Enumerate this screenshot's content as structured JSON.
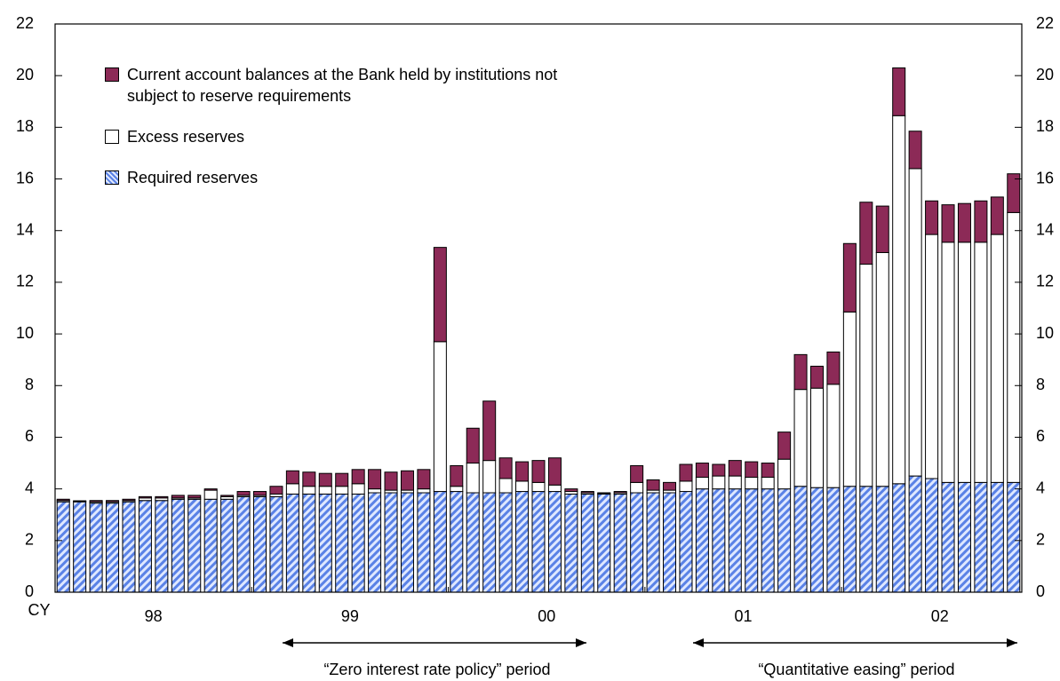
{
  "chart_data": {
    "type": "stacked_bar",
    "categories": [
      null,
      null,
      null,
      null,
      null,
      null,
      null,
      null,
      null,
      null,
      null,
      null,
      null,
      null,
      null,
      null,
      null,
      null,
      null,
      null,
      null,
      null,
      null,
      null,
      null,
      null,
      null,
      null,
      null,
      null,
      null,
      null,
      null,
      null,
      null,
      null,
      null,
      null,
      null,
      null,
      null,
      null,
      null,
      null,
      null,
      null,
      null,
      null,
      null,
      null,
      null,
      null,
      null,
      null,
      null,
      null,
      null,
      null,
      null
    ],
    "axis_prefix": "CY",
    "year_labels": [
      "98",
      "99",
      "00",
      "01",
      "02"
    ],
    "series": [
      {
        "name": "Required reserves",
        "color": "#5a82e6",
        "pattern": "hatch",
        "values": [
          3.5,
          3.5,
          3.45,
          3.45,
          3.5,
          3.55,
          3.55,
          3.6,
          3.6,
          3.6,
          3.6,
          3.7,
          3.7,
          3.7,
          3.8,
          3.8,
          3.8,
          3.8,
          3.8,
          3.85,
          3.85,
          3.85,
          3.85,
          3.9,
          3.9,
          3.85,
          3.85,
          3.85,
          3.9,
          3.9,
          3.9,
          3.8,
          3.8,
          3.8,
          3.8,
          3.85,
          3.85,
          3.85,
          3.9,
          4.0,
          4.0,
          4.0,
          4.0,
          4.0,
          4.0,
          4.1,
          4.05,
          4.05,
          4.1,
          4.1,
          4.1,
          4.2,
          4.5,
          4.4,
          4.25,
          4.25,
          4.25,
          4.25,
          4.25
        ]
      },
      {
        "name": "Excess reserves",
        "color": "#ffffff",
        "values": [
          0.05,
          0.02,
          0.05,
          0.05,
          0.05,
          0.1,
          0.1,
          0.05,
          0.05,
          0.35,
          0.1,
          0.05,
          0.05,
          0.1,
          0.4,
          0.3,
          0.3,
          0.3,
          0.4,
          0.15,
          0.1,
          0.1,
          0.15,
          5.8,
          0.2,
          1.15,
          1.25,
          0.55,
          0.4,
          0.35,
          0.25,
          0.1,
          0.05,
          0.02,
          0.05,
          0.4,
          0.1,
          0.1,
          0.4,
          0.45,
          0.5,
          0.5,
          0.45,
          0.45,
          1.15,
          3.75,
          3.85,
          4.0,
          6.75,
          8.6,
          9.05,
          14.25,
          11.9,
          9.45,
          9.3,
          9.3,
          9.3,
          9.6,
          10.45
        ]
      },
      {
        "name": "Current account balances at the Bank held by institutions not subject to reserve requirements",
        "color": "#8c2a57",
        "values": [
          0.05,
          0.02,
          0.05,
          0.05,
          0.05,
          0.05,
          0.05,
          0.1,
          0.1,
          0.05,
          0.05,
          0.15,
          0.15,
          0.3,
          0.5,
          0.55,
          0.5,
          0.5,
          0.55,
          0.75,
          0.7,
          0.75,
          0.75,
          3.65,
          0.8,
          1.35,
          2.3,
          0.8,
          0.75,
          0.85,
          1.05,
          0.1,
          0.05,
          0.03,
          0.05,
          0.65,
          0.4,
          0.3,
          0.65,
          0.55,
          0.45,
          0.6,
          0.6,
          0.55,
          1.05,
          1.35,
          0.85,
          1.25,
          2.65,
          2.4,
          1.8,
          1.85,
          1.45,
          1.3,
          1.45,
          1.5,
          1.6,
          1.45,
          1.5
        ]
      }
    ],
    "legend_order": [
      2,
      1,
      0
    ],
    "ylim": [
      0,
      22
    ],
    "yticks": [
      0,
      2,
      4,
      6,
      8,
      10,
      12,
      14,
      16,
      18,
      20,
      22
    ],
    "y2lim": [
      0,
      22
    ],
    "y2ticks": [
      0,
      2,
      4,
      6,
      8,
      10,
      12,
      14,
      16,
      18,
      20,
      22
    ],
    "annotations": [
      "“Zero interest rate policy” period",
      "“Quantitative easing” period"
    ]
  }
}
